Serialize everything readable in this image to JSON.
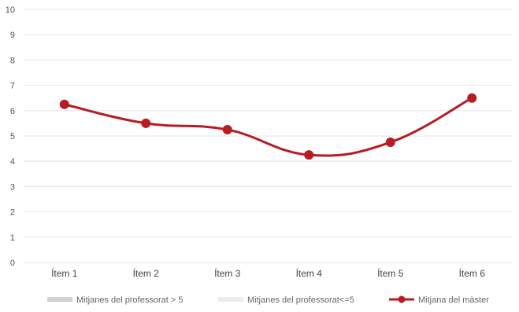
{
  "chart_data": {
    "type": "line",
    "categories": [
      "Ítem 1",
      "Ítem 2",
      "Ítem 3",
      "Ítem 4",
      "Ítem 5",
      "Ítem 6"
    ],
    "series": [
      {
        "name": "Mitjana del màster",
        "values": [
          6.25,
          5.5,
          5.25,
          4.25,
          4.75,
          6.5
        ],
        "color": "#b71c22"
      }
    ],
    "ylim": [
      0,
      10
    ],
    "yticks": [
      0,
      1,
      2,
      3,
      4,
      5,
      6,
      7,
      8,
      9,
      10
    ],
    "grid": true,
    "legend": {
      "position": "bottom",
      "entries": [
        {
          "label": "Mitjanes del professorat > 5",
          "color": "#d3d3d3",
          "kind": "bar"
        },
        {
          "label": "Mitjanes del professorat<=5",
          "color": "#ececec",
          "kind": "bar"
        },
        {
          "label": "Mitjana del màster",
          "color": "#b71c22",
          "kind": "line"
        }
      ]
    }
  }
}
